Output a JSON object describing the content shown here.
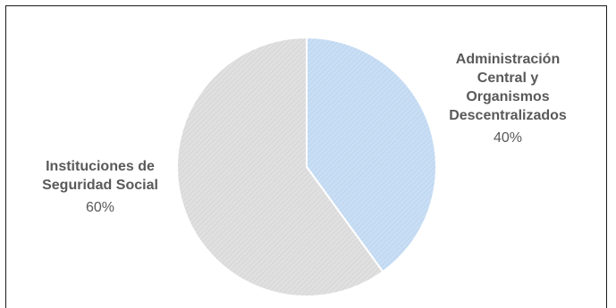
{
  "chart_data": {
    "type": "pie",
    "slices": [
      {
        "label": "Administración\nCentral y\nOrganismos\nDescentralizados",
        "value": 40,
        "value_label": "40%",
        "color": "#c5dcf3",
        "stroke": "#9fc3e7"
      },
      {
        "label": "Instituciones de\nSeguridad Social",
        "value": 60,
        "value_label": "60%",
        "color": "#dcdcdc",
        "stroke": "#c4c4c4"
      }
    ],
    "start_angle": "top, clockwise",
    "legend": "none"
  }
}
